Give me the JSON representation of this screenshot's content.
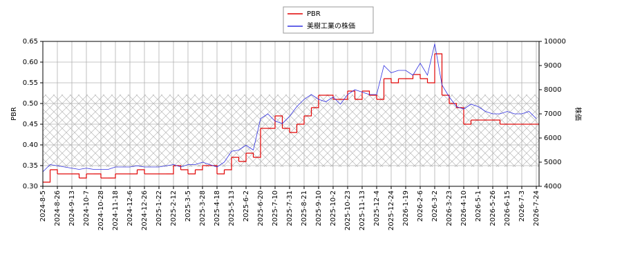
{
  "chart_data": {
    "type": "line",
    "categories": [
      "2024-8-5",
      null,
      "2024-8-26",
      null,
      "2024-9-13",
      null,
      "2024-10-7",
      null,
      "2024-10-28",
      null,
      "2024-11-18",
      null,
      "2024-12-6",
      null,
      "2024-12-26",
      null,
      "2025-1-22",
      null,
      "2025-2-12",
      null,
      "2025-3-5",
      null,
      "2025-3-28",
      null,
      "2025-4-18",
      null,
      "2025-5-13",
      null,
      "2025-6-2",
      null,
      "2025-6-20",
      null,
      "2025-7-10",
      null,
      "2025-7-31",
      null,
      "2025-8-21",
      null,
      "2025-9-10",
      null,
      "2025-10-2",
      null,
      "2025-10-23",
      null,
      "2025-11-13",
      null,
      "2025-12-4",
      null,
      "2025-12-24",
      null,
      "2026-1-19",
      null,
      "2026-2-6",
      null,
      "2026-3-2",
      null,
      "2026-3-23",
      null,
      "2026-4-10",
      null,
      "2026-5-1",
      null,
      "2026-5-26",
      null,
      "2026-6-15",
      null,
      "2026-7-3",
      null,
      "2026-7-24"
    ],
    "series": [
      {
        "name": "PBR",
        "color": "#e00000",
        "drawstyle": "steps-post",
        "values": [
          0.31,
          0.34,
          0.33,
          0.33,
          0.33,
          0.32,
          0.33,
          0.33,
          0.32,
          0.32,
          0.33,
          0.33,
          0.33,
          0.34,
          0.33,
          0.33,
          0.33,
          0.33,
          0.35,
          0.34,
          0.33,
          0.34,
          0.35,
          0.35,
          0.33,
          0.34,
          0.37,
          0.36,
          0.38,
          0.37,
          0.44,
          0.44,
          0.47,
          0.44,
          0.43,
          0.45,
          0.47,
          0.49,
          0.52,
          0.52,
          0.51,
          0.51,
          0.53,
          0.51,
          0.53,
          0.52,
          0.51,
          0.56,
          0.55,
          0.56,
          0.56,
          0.57,
          0.56,
          0.55,
          0.62,
          0.52,
          0.5,
          0.49,
          0.45,
          0.46,
          0.46,
          0.46,
          0.46,
          0.45,
          0.45,
          0.45,
          0.45,
          0.45,
          0.45
        ]
      },
      {
        "name": "美樹工業の株価",
        "color": "#3030e0",
        "axis": "y2",
        "values": [
          4600,
          4900,
          4850,
          4800,
          4750,
          4700,
          4750,
          4700,
          4700,
          4700,
          4800,
          4800,
          4800,
          4850,
          4800,
          4800,
          4800,
          4850,
          4900,
          4800,
          4900,
          4900,
          5000,
          4900,
          4800,
          5000,
          5450,
          5500,
          5700,
          5500,
          6800,
          7000,
          6700,
          6600,
          6900,
          7300,
          7600,
          7800,
          7600,
          7500,
          7700,
          7400,
          7800,
          8000,
          7900,
          7800,
          7800,
          9000,
          8700,
          8800,
          8800,
          8600,
          9100,
          8600,
          9900,
          8200,
          7700,
          7300,
          7200,
          7400,
          7300,
          7100,
          7000,
          7000,
          7100,
          7000,
          7000,
          7100,
          6800
        ]
      }
    ],
    "ylabel": "PBR",
    "y2label": "株価",
    "ylim": [
      0.3,
      0.65
    ],
    "yticks": [
      {
        "value": 0.3,
        "label": "0.30"
      },
      {
        "value": 0.35,
        "label": "0.35"
      },
      {
        "value": 0.4,
        "label": "0.40"
      },
      {
        "value": 0.45,
        "label": "0.45"
      },
      {
        "value": 0.5,
        "label": "0.50"
      },
      {
        "value": 0.55,
        "label": "0.55"
      },
      {
        "value": 0.6,
        "label": "0.60"
      },
      {
        "value": 0.65,
        "label": "0.65"
      }
    ],
    "y2lim": [
      4000,
      10000
    ],
    "y2ticks": [
      4000,
      5000,
      6000,
      7000,
      8000,
      9000,
      10000
    ],
    "y2band": [
      4800,
      7800
    ],
    "grid": true,
    "legend": "top"
  }
}
